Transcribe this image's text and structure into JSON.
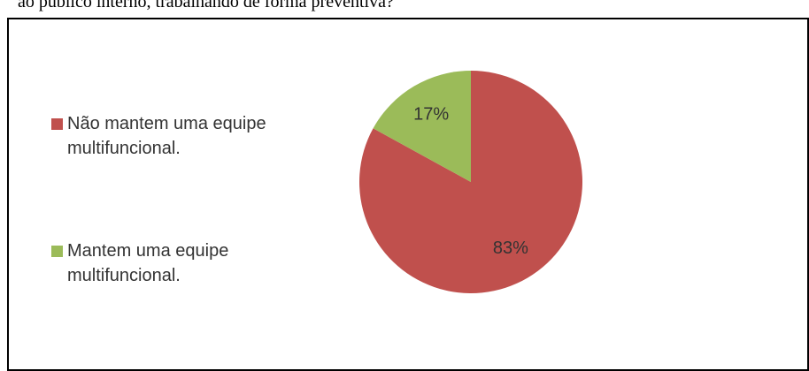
{
  "caption": "ao publico interno, trabalhando de forma preventiva?",
  "chart_data": {
    "type": "pie",
    "categories": [
      "Não mantem uma equipe multifuncional.",
      "Mantem uma equipe multifuncional."
    ],
    "values": [
      83,
      17
    ],
    "value_labels": [
      "83%",
      "17%"
    ],
    "colors": [
      "#c0504d",
      "#9bbb59"
    ],
    "legend": "left"
  }
}
